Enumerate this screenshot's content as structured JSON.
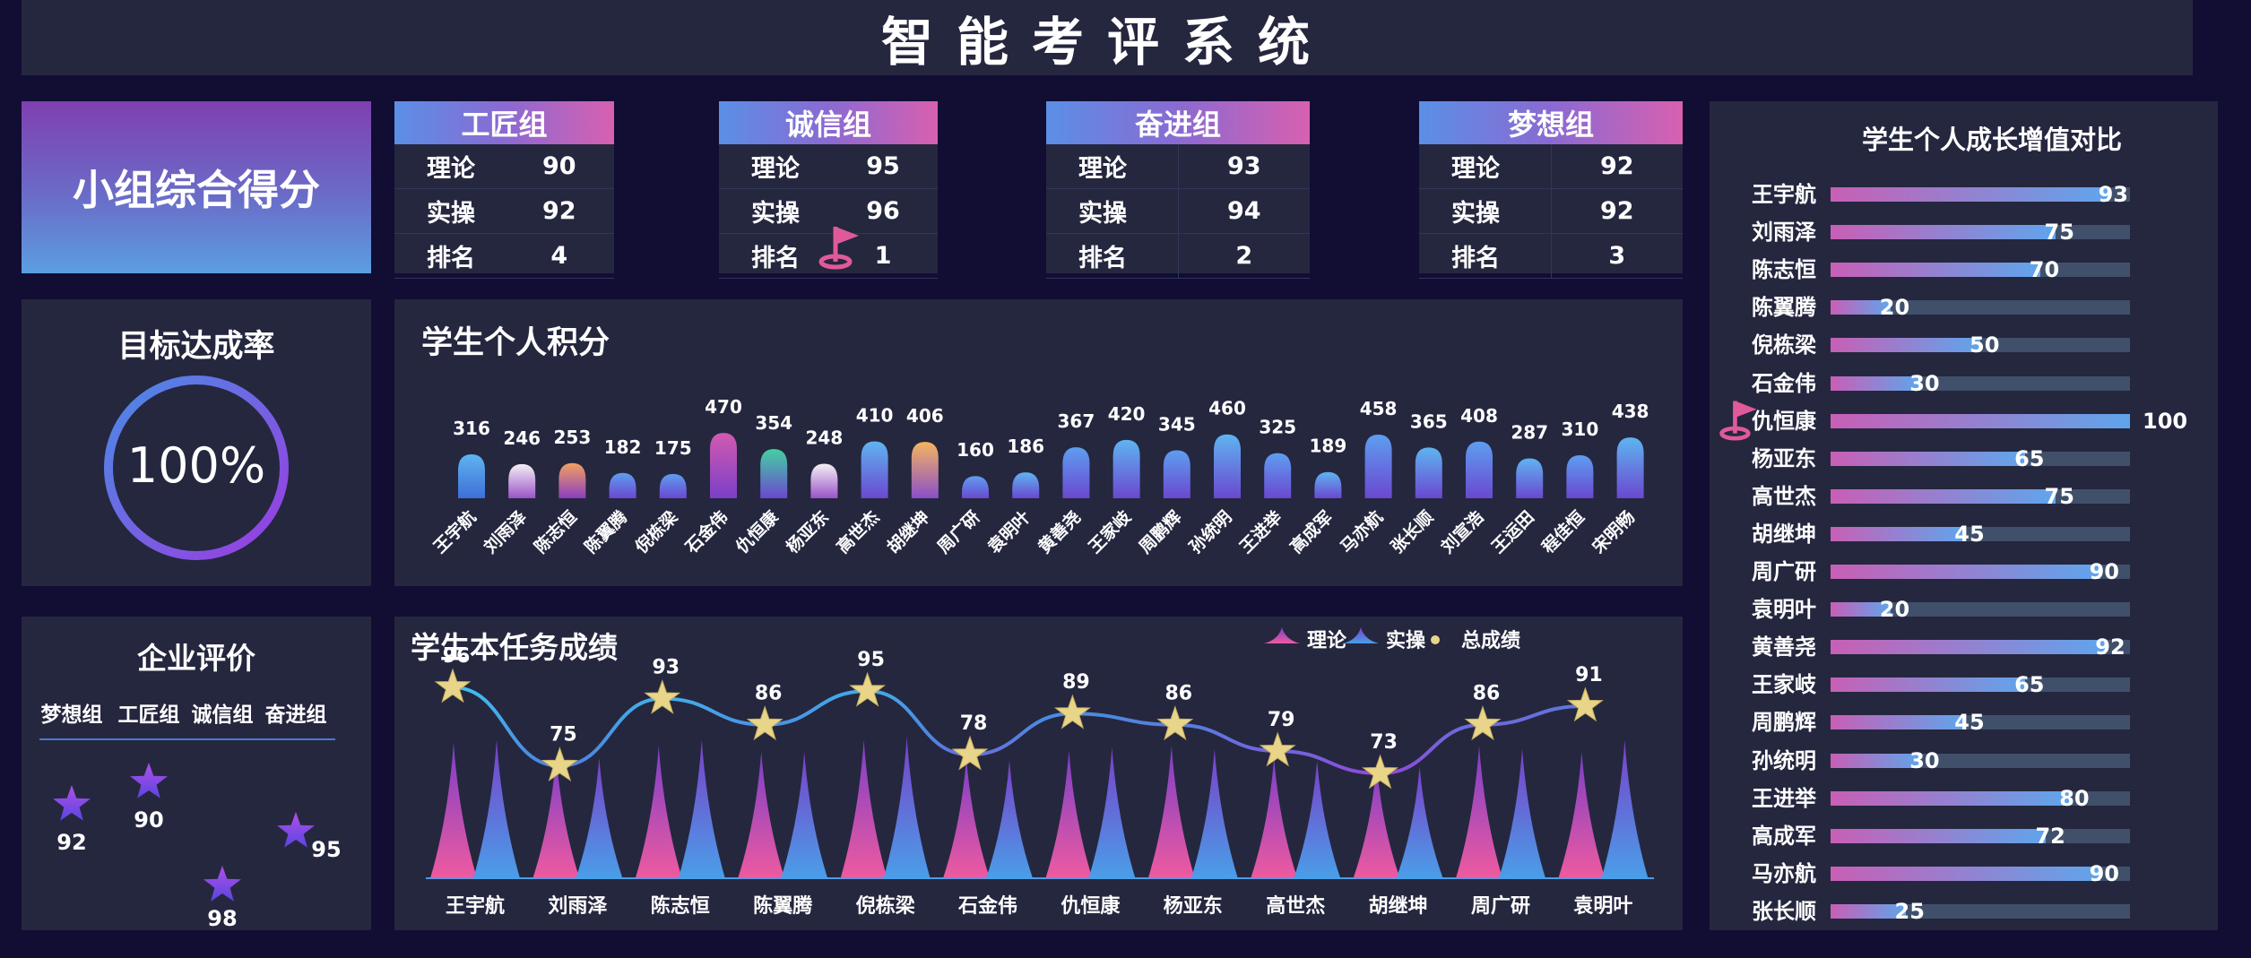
{
  "header": {
    "title": "智能考评系统"
  },
  "group_score": {
    "title": "小组综合得分"
  },
  "teams": [
    {
      "name": "工匠组",
      "rows": [
        {
          "label": "理论",
          "value": "90"
        },
        {
          "label": "实操",
          "value": "92"
        },
        {
          "label": "排名",
          "value": "4"
        }
      ]
    },
    {
      "name": "诚信组",
      "rows": [
        {
          "label": "理论",
          "value": "95"
        },
        {
          "label": "实操",
          "value": "96"
        },
        {
          "label": "排名",
          "value": "1"
        }
      ]
    },
    {
      "name": "奋进组",
      "rows": [
        {
          "label": "理论",
          "value": "93"
        },
        {
          "label": "实操",
          "value": "94"
        },
        {
          "label": "排名",
          "value": "2"
        }
      ]
    },
    {
      "name": "梦想组",
      "rows": [
        {
          "label": "理论",
          "value": "92"
        },
        {
          "label": "实操",
          "value": "92"
        },
        {
          "label": "排名",
          "value": "3"
        }
      ]
    }
  ],
  "target_rate": {
    "title": "目标达成率",
    "value": "100%",
    "fraction": 1.0
  },
  "enterprise": {
    "title": "企业评价",
    "groups": [
      "梦想组",
      "工匠组",
      "诚信组",
      "奋进组"
    ],
    "values": [
      92,
      90,
      98,
      95
    ]
  },
  "colors": {
    "panel": "#25273f",
    "background": "#110d33",
    "accent_pink": "#d860b0",
    "accent_blue": "#5b9ee0",
    "star": "#e8d58a",
    "flag": "#e05a9a"
  },
  "chart_data": [
    {
      "type": "bar",
      "title": "学生个人积分",
      "categories": [
        "王宇航",
        "刘雨泽",
        "陈志恒",
        "陈翼腾",
        "倪栋梁",
        "石金伟",
        "仇恒康",
        "杨亚东",
        "高世杰",
        "胡继坤",
        "周广研",
        "袁明叶",
        "黄善尧",
        "王家岐",
        "周鹏辉",
        "孙统明",
        "王进举",
        "高成军",
        "马亦航",
        "张长顺",
        "刘宣浩",
        "王运田",
        "程佳恒",
        "宋明畅"
      ],
      "values": [
        316,
        246,
        253,
        182,
        175,
        470,
        354,
        248,
        410,
        406,
        160,
        186,
        367,
        420,
        345,
        460,
        325,
        189,
        458,
        365,
        408,
        287,
        310,
        438
      ],
      "ylim": [
        0,
        500
      ]
    },
    {
      "type": "line",
      "title": "学生本任务成绩",
      "legend": [
        "理论",
        "实操",
        "总成绩"
      ],
      "legend_position": "top-right",
      "categories": [
        "王宇航",
        "刘雨泽",
        "陈志恒",
        "陈翼腾",
        "倪栋梁",
        "石金伟",
        "仇恒康",
        "杨亚东",
        "高世杰",
        "胡继坤",
        "周广研",
        "袁明叶"
      ],
      "series": [
        {
          "name": "总成绩",
          "values": [
            96,
            75,
            93,
            86,
            95,
            78,
            89,
            86,
            79,
            73,
            86,
            91
          ]
        },
        {
          "name": "理论",
          "values": [
            90,
            82,
            88,
            84,
            92,
            80,
            85,
            88,
            80,
            76,
            88,
            84
          ]
        },
        {
          "name": "实操",
          "values": [
            92,
            80,
            92,
            84,
            94,
            78,
            87,
            86,
            78,
            74,
            86,
            92
          ]
        }
      ],
      "ylim": [
        0,
        100
      ]
    },
    {
      "type": "bar",
      "orientation": "horizontal",
      "title": "学生个人成长增值对比",
      "categories": [
        "王宇航",
        "刘雨泽",
        "陈志恒",
        "陈翼腾",
        "倪栋梁",
        "石金伟",
        "仇恒康",
        "杨亚东",
        "高世杰",
        "胡继坤",
        "周广研",
        "袁明叶",
        "黄善尧",
        "王家岐",
        "周鹏辉",
        "孙统明",
        "王进举",
        "高成军",
        "马亦航",
        "张长顺"
      ],
      "values": [
        93,
        75,
        70,
        20,
        50,
        30,
        100,
        65,
        75,
        45,
        90,
        20,
        92,
        65,
        45,
        30,
        80,
        72,
        90,
        25
      ],
      "xlim": [
        0,
        100
      ]
    }
  ]
}
